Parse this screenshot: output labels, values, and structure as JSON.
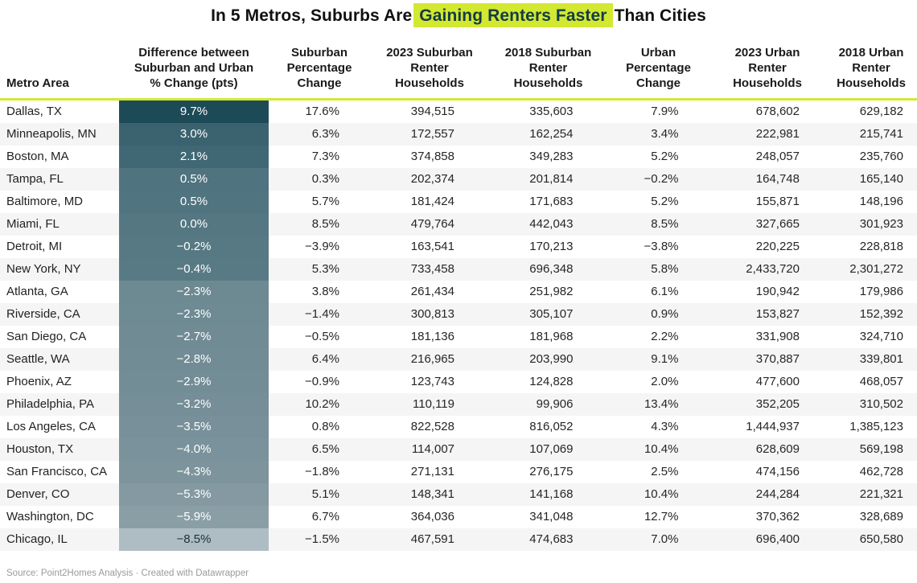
{
  "title": {
    "prefix": "In 5 Metros, Suburbs Are",
    "highlight": "Gaining Renters Faster",
    "suffix": "Than Cities"
  },
  "colors": {
    "accent": "#d3e831",
    "highlight_text": "#123c46",
    "heatmap_darkest": "#1d4a57",
    "heatmap_lightest": "#aebdc3",
    "row_stripe": "#f5f5f6"
  },
  "source": "Source: Point2Homes Analysis · Created with Datawrapper",
  "table": {
    "columns": [
      {
        "label": "Metro Area"
      },
      {
        "label": "Difference between Suburban and Urban % Change (pts)"
      },
      {
        "label": "Suburban Percentage Change"
      },
      {
        "label": "2023 Suburban Renter Households"
      },
      {
        "label": "2018 Suburban Renter Households"
      },
      {
        "label": "Urban Percentage Change"
      },
      {
        "label": "2023 Urban Renter Households"
      },
      {
        "label": "2018 Urban Renter Households"
      }
    ],
    "rows": [
      {
        "metro": "Dallas, TX",
        "diff": "9.7%",
        "diff_bg": "#1d4a57",
        "diff_text": "#ffffff",
        "sub_pct": "17.6%",
        "sub_2023": "394,515",
        "sub_2018": "335,603",
        "urb_pct": "7.9%",
        "urb_2023": "678,602",
        "urb_2018": "629,182"
      },
      {
        "metro": "Minneapolis, MN",
        "diff": "3.0%",
        "diff_bg": "#3a636f",
        "diff_text": "#ffffff",
        "sub_pct": "6.3%",
        "sub_2023": "172,557",
        "sub_2018": "162,254",
        "urb_pct": "3.4%",
        "urb_2023": "222,981",
        "urb_2018": "215,741"
      },
      {
        "metro": "Boston, MA",
        "diff": "2.1%",
        "diff_bg": "#406874",
        "diff_text": "#ffffff",
        "sub_pct": "7.3%",
        "sub_2023": "374,858",
        "sub_2018": "349,283",
        "urb_pct": "5.2%",
        "urb_2023": "248,057",
        "urb_2018": "235,760"
      },
      {
        "metro": "Tampa, FL",
        "diff": "0.5%",
        "diff_bg": "#4f737f",
        "diff_text": "#ffffff",
        "sub_pct": "0.3%",
        "sub_2023": "202,374",
        "sub_2018": "201,814",
        "urb_pct": "−0.2%",
        "urb_2023": "164,748",
        "urb_2018": "165,140"
      },
      {
        "metro": "Baltimore, MD",
        "diff": "0.5%",
        "diff_bg": "#507480",
        "diff_text": "#ffffff",
        "sub_pct": "5.7%",
        "sub_2023": "181,424",
        "sub_2018": "171,683",
        "urb_pct": "5.2%",
        "urb_2023": "155,871",
        "urb_2018": "148,196"
      },
      {
        "metro": "Miami, FL",
        "diff": "0.0%",
        "diff_bg": "#547781",
        "diff_text": "#ffffff",
        "sub_pct": "8.5%",
        "sub_2023": "479,764",
        "sub_2018": "442,043",
        "urb_pct": "8.5%",
        "urb_2023": "327,665",
        "urb_2018": "301,923"
      },
      {
        "metro": "Detroit, MI",
        "diff": "−0.2%",
        "diff_bg": "#567983",
        "diff_text": "#ffffff",
        "sub_pct": "−3.9%",
        "sub_2023": "163,541",
        "sub_2018": "170,213",
        "urb_pct": "−3.8%",
        "urb_2023": "220,225",
        "urb_2018": "228,818"
      },
      {
        "metro": "New York, NY",
        "diff": "−0.4%",
        "diff_bg": "#587a84",
        "diff_text": "#ffffff",
        "sub_pct": "5.3%",
        "sub_2023": "733,458",
        "sub_2018": "696,348",
        "urb_pct": "5.8%",
        "urb_2023": "2,433,720",
        "urb_2018": "2,301,272"
      },
      {
        "metro": "Atlanta, GA",
        "diff": "−2.3%",
        "diff_bg": "#6d8992",
        "diff_text": "#ffffff",
        "sub_pct": "3.8%",
        "sub_2023": "261,434",
        "sub_2018": "251,982",
        "urb_pct": "6.1%",
        "urb_2023": "190,942",
        "urb_2018": "179,986"
      },
      {
        "metro": "Riverside, CA",
        "diff": "−2.3%",
        "diff_bg": "#6e8a93",
        "diff_text": "#ffffff",
        "sub_pct": "−1.4%",
        "sub_2023": "300,813",
        "sub_2018": "305,107",
        "urb_pct": "0.9%",
        "urb_2023": "153,827",
        "urb_2018": "152,392"
      },
      {
        "metro": "San Diego, CA",
        "diff": "−2.7%",
        "diff_bg": "#718b94",
        "diff_text": "#ffffff",
        "sub_pct": "−0.5%",
        "sub_2023": "181,136",
        "sub_2018": "181,968",
        "urb_pct": "2.2%",
        "urb_2023": "331,908",
        "urb_2018": "324,710"
      },
      {
        "metro": "Seattle, WA",
        "diff": "−2.8%",
        "diff_bg": "#728c95",
        "diff_text": "#ffffff",
        "sub_pct": "6.4%",
        "sub_2023": "216,965",
        "sub_2018": "203,990",
        "urb_pct": "9.1%",
        "urb_2023": "370,887",
        "urb_2018": "339,801"
      },
      {
        "metro": "Phoenix, AZ",
        "diff": "−2.9%",
        "diff_bg": "#738d96",
        "diff_text": "#ffffff",
        "sub_pct": "−0.9%",
        "sub_2023": "123,743",
        "sub_2018": "124,828",
        "urb_pct": "2.0%",
        "urb_2023": "477,600",
        "urb_2018": "468,057"
      },
      {
        "metro": "Philadelphia, PA",
        "diff": "−3.2%",
        "diff_bg": "#758e97",
        "diff_text": "#ffffff",
        "sub_pct": "10.2%",
        "sub_2023": "110,119",
        "sub_2018": "99,906",
        "urb_pct": "13.4%",
        "urb_2023": "352,205",
        "urb_2018": "310,502"
      },
      {
        "metro": "Los Angeles, CA",
        "diff": "−3.5%",
        "diff_bg": "#779099",
        "diff_text": "#ffffff",
        "sub_pct": "0.8%",
        "sub_2023": "822,528",
        "sub_2018": "816,052",
        "urb_pct": "4.3%",
        "urb_2023": "1,444,937",
        "urb_2018": "1,385,123"
      },
      {
        "metro": "Houston, TX",
        "diff": "−4.0%",
        "diff_bg": "#7a929b",
        "diff_text": "#ffffff",
        "sub_pct": "6.5%",
        "sub_2023": "114,007",
        "sub_2018": "107,069",
        "urb_pct": "10.4%",
        "urb_2023": "628,609",
        "urb_2018": "569,198"
      },
      {
        "metro": "San Francisco, CA",
        "diff": "−4.3%",
        "diff_bg": "#7d949d",
        "diff_text": "#ffffff",
        "sub_pct": "−1.8%",
        "sub_2023": "271,131",
        "sub_2018": "276,175",
        "urb_pct": "2.5%",
        "urb_2023": "474,156",
        "urb_2018": "462,728"
      },
      {
        "metro": "Denver, CO",
        "diff": "−5.3%",
        "diff_bg": "#8499a1",
        "diff_text": "#ffffff",
        "sub_pct": "5.1%",
        "sub_2023": "148,341",
        "sub_2018": "141,168",
        "urb_pct": "10.4%",
        "urb_2023": "244,284",
        "urb_2018": "221,321"
      },
      {
        "metro": "Washington, DC",
        "diff": "−5.9%",
        "diff_bg": "#8a9ea6",
        "diff_text": "#ffffff",
        "sub_pct": "6.7%",
        "sub_2023": "364,036",
        "sub_2018": "341,048",
        "urb_pct": "12.7%",
        "urb_2023": "370,362",
        "urb_2018": "328,689"
      },
      {
        "metro": "Chicago, IL",
        "diff": "−8.5%",
        "diff_bg": "#aebdc3",
        "diff_text": "#20313a",
        "sub_pct": "−1.5%",
        "sub_2023": "467,591",
        "sub_2018": "474,683",
        "urb_pct": "7.0%",
        "urb_2023": "696,400",
        "urb_2018": "650,580"
      }
    ]
  },
  "chart_data": {
    "type": "table",
    "title": "In 5 Metros, Suburbs Are Gaining Renters Faster Than Cities",
    "heatmap_column": "Difference between Suburban and Urban % Change (pts)",
    "legend_position": "none",
    "columns": [
      "Metro Area",
      "Difference between Suburban and Urban % Change (pts)",
      "Suburban Percentage Change",
      "2023 Suburban Renter Households",
      "2018 Suburban Renter Households",
      "Urban Percentage Change",
      "2023 Urban Renter Households",
      "2018 Urban Renter Households"
    ],
    "rows": [
      [
        "Dallas, TX",
        9.7,
        17.6,
        394515,
        335603,
        7.9,
        678602,
        629182
      ],
      [
        "Minneapolis, MN",
        3.0,
        6.3,
        172557,
        162254,
        3.4,
        222981,
        215741
      ],
      [
        "Boston, MA",
        2.1,
        7.3,
        374858,
        349283,
        5.2,
        248057,
        235760
      ],
      [
        "Tampa, FL",
        0.5,
        0.3,
        202374,
        201814,
        -0.2,
        164748,
        165140
      ],
      [
        "Baltimore, MD",
        0.5,
        5.7,
        181424,
        171683,
        5.2,
        155871,
        148196
      ],
      [
        "Miami, FL",
        0.0,
        8.5,
        479764,
        442043,
        8.5,
        327665,
        301923
      ],
      [
        "Detroit, MI",
        -0.2,
        -3.9,
        163541,
        170213,
        -3.8,
        220225,
        228818
      ],
      [
        "New York, NY",
        -0.4,
        5.3,
        733458,
        696348,
        5.8,
        2433720,
        2301272
      ],
      [
        "Atlanta, GA",
        -2.3,
        3.8,
        261434,
        251982,
        6.1,
        190942,
        179986
      ],
      [
        "Riverside, CA",
        -2.3,
        -1.4,
        300813,
        305107,
        0.9,
        153827,
        152392
      ],
      [
        "San Diego, CA",
        -2.7,
        -0.5,
        181136,
        181968,
        2.2,
        331908,
        324710
      ],
      [
        "Seattle, WA",
        -2.8,
        6.4,
        216965,
        203990,
        9.1,
        370887,
        339801
      ],
      [
        "Phoenix, AZ",
        -2.9,
        -0.9,
        123743,
        124828,
        2.0,
        477600,
        468057
      ],
      [
        "Philadelphia, PA",
        -3.2,
        10.2,
        110119,
        99906,
        13.4,
        352205,
        310502
      ],
      [
        "Los Angeles, CA",
        -3.5,
        0.8,
        822528,
        816052,
        4.3,
        1444937,
        1385123
      ],
      [
        "Houston, TX",
        -4.0,
        6.5,
        114007,
        107069,
        10.4,
        628609,
        569198
      ],
      [
        "San Francisco, CA",
        -4.3,
        -1.8,
        271131,
        276175,
        2.5,
        474156,
        462728
      ],
      [
        "Denver, CO",
        -5.3,
        5.1,
        148341,
        141168,
        10.4,
        244284,
        221321
      ],
      [
        "Washington, DC",
        -5.9,
        6.7,
        364036,
        341048,
        12.7,
        370362,
        328689
      ],
      [
        "Chicago, IL",
        -8.5,
        -1.5,
        467591,
        474683,
        7.0,
        696400,
        650580
      ]
    ],
    "source": "Source: Point2Homes Analysis · Created with Datawrapper"
  }
}
